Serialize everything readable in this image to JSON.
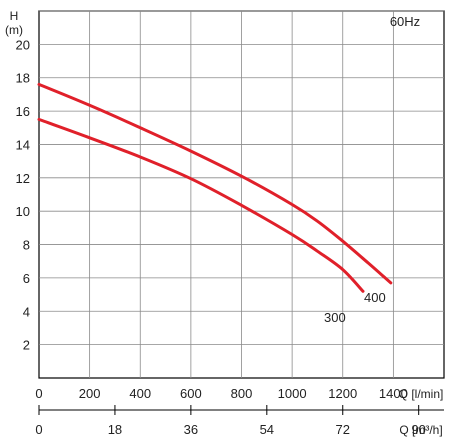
{
  "chart_data": {
    "type": "line",
    "frequency_label": "60Hz",
    "y_axis": {
      "label_line1": "H",
      "label_line2": "(m)",
      "range": [
        0,
        22
      ],
      "ticks": [
        2,
        4,
        6,
        8,
        10,
        12,
        14,
        16,
        18,
        20
      ]
    },
    "x_axis_primary": {
      "label": "Q [l/min]",
      "range": [
        0,
        1600
      ],
      "ticks": [
        0,
        200,
        400,
        600,
        800,
        1000,
        1200,
        1400
      ]
    },
    "x_axis_secondary": {
      "label": "Q [m³/h]",
      "range": [
        0,
        96
      ],
      "ticks": [
        0,
        18,
        36,
        54,
        72,
        90
      ]
    },
    "grid": true,
    "line_color": "#e0202a",
    "series": [
      {
        "name": "400",
        "points": [
          [
            0,
            17.6
          ],
          [
            200,
            16.35
          ],
          [
            400,
            15.0
          ],
          [
            600,
            13.6
          ],
          [
            800,
            12.1
          ],
          [
            1000,
            10.4
          ],
          [
            1100,
            9.4
          ],
          [
            1200,
            8.2
          ],
          [
            1300,
            6.9
          ],
          [
            1390,
            5.7
          ]
        ]
      },
      {
        "name": "300",
        "points": [
          [
            0,
            15.5
          ],
          [
            200,
            14.4
          ],
          [
            400,
            13.25
          ],
          [
            600,
            11.95
          ],
          [
            800,
            10.35
          ],
          [
            1000,
            8.6
          ],
          [
            1100,
            7.6
          ],
          [
            1200,
            6.5
          ],
          [
            1280,
            5.2
          ]
        ]
      }
    ]
  }
}
